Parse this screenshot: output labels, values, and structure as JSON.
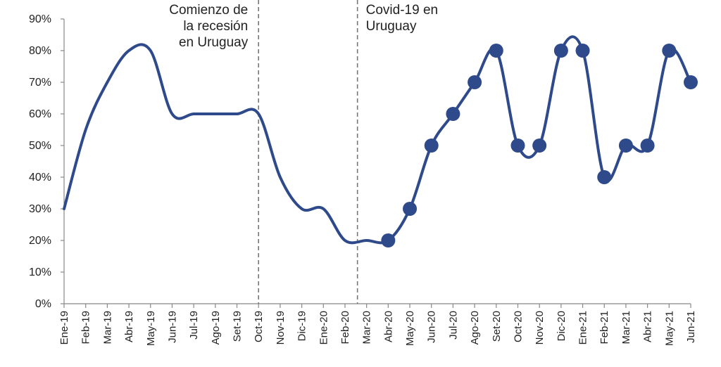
{
  "chart_data": {
    "type": "line",
    "title": "",
    "xlabel": "",
    "ylabel": "",
    "ylim": [
      0,
      90
    ],
    "y_ticks": [
      "0%",
      "10%",
      "20%",
      "30%",
      "40%",
      "50%",
      "60%",
      "70%",
      "80%",
      "90%"
    ],
    "categories": [
      "Ene-19",
      "Feb-19",
      "Mar-19",
      "Abr-19",
      "May-19",
      "Jun-19",
      "Jul-19",
      "Ago-19",
      "Set-19",
      "Oct-19",
      "Nov-19",
      "Dic-19",
      "Ene-20",
      "Feb-20",
      "Mar-20",
      "Abr-20",
      "May-20",
      "Jun-20",
      "Jul-20",
      "Ago-20",
      "Set-20",
      "Oct-20",
      "Nov-20",
      "Dic-20",
      "Ene-21",
      "Feb-21",
      "Mar-21",
      "Abr-21",
      "May-21",
      "Jun-21"
    ],
    "series": [
      {
        "values": [
          30,
          55,
          70,
          80,
          80,
          60,
          60,
          60,
          60,
          60,
          40,
          30,
          30,
          20,
          20,
          20,
          30,
          50,
          60,
          70,
          80,
          50,
          50,
          80,
          80,
          40,
          50,
          50,
          80,
          70
        ],
        "color": "#2E4A8B",
        "markers_from": "Abr-20"
      }
    ],
    "grid": false,
    "legend": "none",
    "annotations": [
      {
        "text": "Comienzo de la recesión en Uruguay",
        "lines": [
          "Comienzo de",
          "la recesión",
          "en Uruguay"
        ],
        "x": "Oct-19",
        "align": "right"
      },
      {
        "text": "Covid-19 en Uruguay",
        "lines": [
          "Covid-19 en",
          "Uruguay"
        ],
        "x": "Mar-20",
        "align": "left"
      }
    ]
  }
}
